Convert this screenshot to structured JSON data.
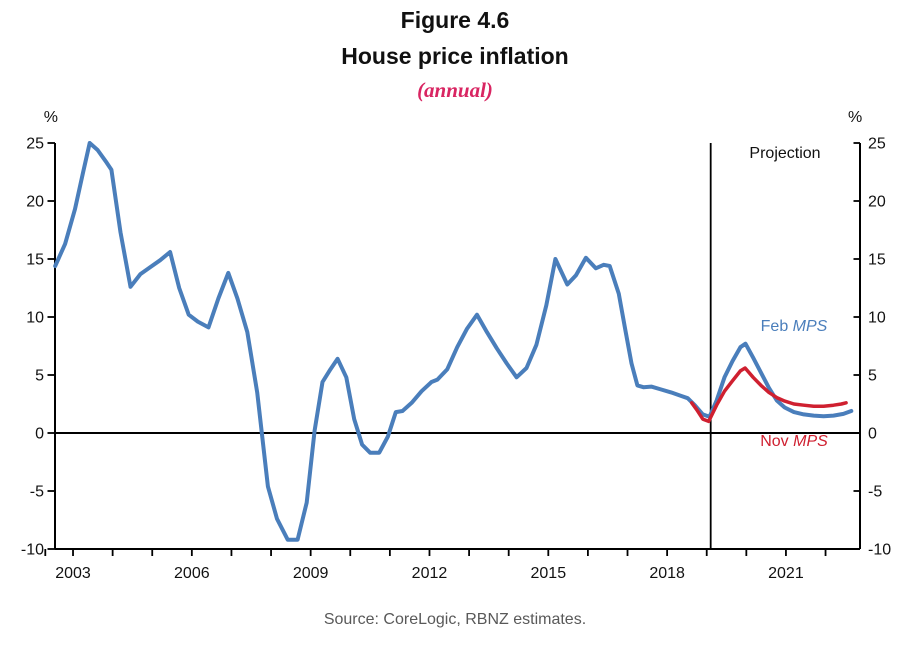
{
  "header": {
    "figure_label": "Figure 4.6",
    "title": "House price inflation",
    "subtitle": "(annual)"
  },
  "axis_units": {
    "left": "%",
    "right": "%"
  },
  "projection_label": "Projection",
  "legend": {
    "feb": {
      "prefix": "Feb ",
      "italic": "MPS"
    },
    "nov": {
      "prefix": "Nov ",
      "italic": "MPS"
    }
  },
  "source": "Source: CoreLogic, RBNZ estimates.",
  "colors": {
    "feb_blue": "#4a7ebb",
    "nov_red": "#cf2030",
    "subtitle_pink": "#d92562",
    "axis_black": "#000000",
    "source_gray": "#595959"
  },
  "chart_data": {
    "type": "line",
    "title": "House price inflation (annual)",
    "ylabel": "%",
    "xlim": [
      2002.545,
      2022.87
    ],
    "ylim": [
      -10,
      25
    ],
    "y_ticks": [
      25,
      20,
      15,
      10,
      5,
      0,
      -5,
      -10
    ],
    "x_minor_tick_years": [
      2002.3,
      2003,
      2004,
      2005,
      2006,
      2007,
      2008,
      2009,
      2010,
      2011,
      2012,
      2013,
      2014,
      2015,
      2016,
      2017,
      2018,
      2019,
      2020,
      2021,
      2022
    ],
    "x_label_years": [
      2003,
      2006,
      2009,
      2012,
      2015,
      2018,
      2021
    ],
    "zero_line_y": 0,
    "projection_start_year": 2019.1,
    "grid": false,
    "series": [
      {
        "name": "Feb MPS",
        "color": "#4a7ebb",
        "width": 4,
        "points": [
          [
            2002.55,
            14.4
          ],
          [
            2002.8,
            16.3
          ],
          [
            2003.05,
            19.3
          ],
          [
            2003.25,
            22.4
          ],
          [
            2003.42,
            25.0
          ],
          [
            2003.62,
            24.4
          ],
          [
            2003.85,
            23.3
          ],
          [
            2003.97,
            22.7
          ],
          [
            2004.2,
            17.3
          ],
          [
            2004.45,
            12.6
          ],
          [
            2004.7,
            13.7
          ],
          [
            2004.95,
            14.3
          ],
          [
            2005.2,
            14.9
          ],
          [
            2005.45,
            15.6
          ],
          [
            2005.68,
            12.5
          ],
          [
            2005.92,
            10.2
          ],
          [
            2006.15,
            9.6
          ],
          [
            2006.42,
            9.1
          ],
          [
            2006.67,
            11.6
          ],
          [
            2006.92,
            13.8
          ],
          [
            2007.15,
            11.6
          ],
          [
            2007.4,
            8.7
          ],
          [
            2007.65,
            3.5
          ],
          [
            2007.92,
            -4.6
          ],
          [
            2008.15,
            -7.4
          ],
          [
            2008.42,
            -9.2
          ],
          [
            2008.67,
            -9.2
          ],
          [
            2008.9,
            -6.0
          ],
          [
            2009.1,
            0.2
          ],
          [
            2009.3,
            4.4
          ],
          [
            2009.5,
            5.5
          ],
          [
            2009.68,
            6.4
          ],
          [
            2009.9,
            4.8
          ],
          [
            2010.1,
            1.2
          ],
          [
            2010.3,
            -1.0
          ],
          [
            2010.5,
            -1.7
          ],
          [
            2010.73,
            -1.7
          ],
          [
            2010.95,
            -0.3
          ],
          [
            2011.15,
            1.8
          ],
          [
            2011.32,
            1.9
          ],
          [
            2011.55,
            2.6
          ],
          [
            2011.8,
            3.6
          ],
          [
            2012.05,
            4.4
          ],
          [
            2012.2,
            4.6
          ],
          [
            2012.45,
            5.5
          ],
          [
            2012.7,
            7.4
          ],
          [
            2012.95,
            9.0
          ],
          [
            2013.2,
            10.2
          ],
          [
            2013.45,
            8.7
          ],
          [
            2013.7,
            7.3
          ],
          [
            2013.95,
            6.0
          ],
          [
            2014.2,
            4.8
          ],
          [
            2014.45,
            5.6
          ],
          [
            2014.7,
            7.6
          ],
          [
            2014.95,
            11.0
          ],
          [
            2015.18,
            15.0
          ],
          [
            2015.48,
            12.8
          ],
          [
            2015.7,
            13.6
          ],
          [
            2015.95,
            15.1
          ],
          [
            2016.2,
            14.2
          ],
          [
            2016.4,
            14.5
          ],
          [
            2016.55,
            14.4
          ],
          [
            2016.78,
            12.0
          ],
          [
            2016.95,
            8.8
          ],
          [
            2017.1,
            6.0
          ],
          [
            2017.25,
            4.1
          ],
          [
            2017.4,
            3.95
          ],
          [
            2017.6,
            4.0
          ],
          [
            2017.85,
            3.75
          ],
          [
            2018.1,
            3.5
          ],
          [
            2018.35,
            3.2
          ],
          [
            2018.52,
            3.0
          ],
          [
            2018.7,
            2.4
          ],
          [
            2018.9,
            1.6
          ],
          [
            2019.07,
            1.4
          ],
          [
            2019.25,
            2.8
          ],
          [
            2019.45,
            4.8
          ],
          [
            2019.65,
            6.2
          ],
          [
            2019.85,
            7.4
          ],
          [
            2019.98,
            7.7
          ],
          [
            2020.17,
            6.5
          ],
          [
            2020.37,
            5.2
          ],
          [
            2020.57,
            3.9
          ],
          [
            2020.77,
            2.8
          ],
          [
            2020.97,
            2.2
          ],
          [
            2021.2,
            1.8
          ],
          [
            2021.45,
            1.6
          ],
          [
            2021.7,
            1.5
          ],
          [
            2021.95,
            1.45
          ],
          [
            2022.2,
            1.5
          ],
          [
            2022.45,
            1.65
          ],
          [
            2022.65,
            1.9
          ]
        ]
      },
      {
        "name": "Nov MPS",
        "color": "#cf2030",
        "width": 3.5,
        "points": [
          [
            2018.62,
            2.6
          ],
          [
            2018.75,
            2.0
          ],
          [
            2018.9,
            1.2
          ],
          [
            2019.05,
            1.0
          ],
          [
            2019.25,
            2.4
          ],
          [
            2019.45,
            3.6
          ],
          [
            2019.65,
            4.5
          ],
          [
            2019.85,
            5.35
          ],
          [
            2019.97,
            5.6
          ],
          [
            2020.17,
            4.8
          ],
          [
            2020.37,
            4.1
          ],
          [
            2020.57,
            3.5
          ],
          [
            2020.77,
            3.05
          ],
          [
            2020.97,
            2.75
          ],
          [
            2021.2,
            2.5
          ],
          [
            2021.45,
            2.4
          ],
          [
            2021.7,
            2.3
          ],
          [
            2021.95,
            2.3
          ],
          [
            2022.2,
            2.4
          ],
          [
            2022.4,
            2.5
          ],
          [
            2022.52,
            2.6
          ]
        ]
      }
    ]
  }
}
